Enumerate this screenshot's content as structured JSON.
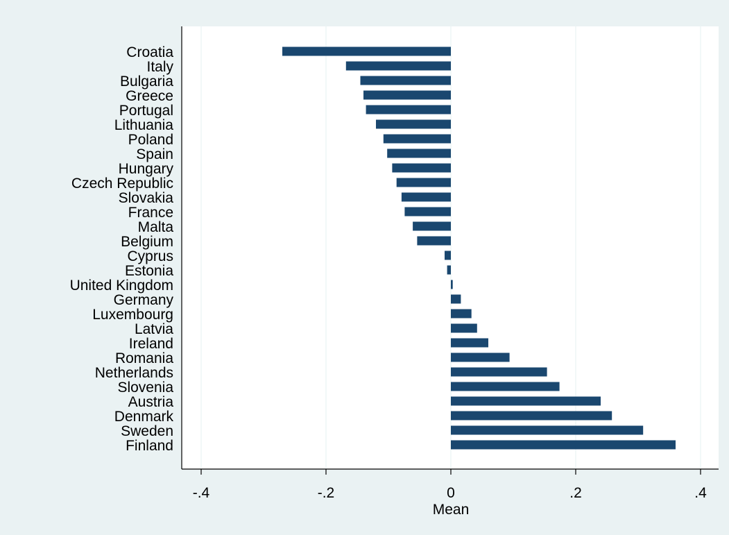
{
  "chart_data": {
    "type": "bar",
    "orientation": "horizontal",
    "categories": [
      "Croatia",
      "Italy",
      "Bulgaria",
      "Greece",
      "Portugal",
      "Lithuania",
      "Poland",
      "Spain",
      "Hungary",
      "Czech Republic",
      "Slovakia",
      "France",
      "Malta",
      "Belgium",
      "Cyprus",
      "Estonia",
      "United Kingdom",
      "Germany",
      "Luxembourg",
      "Latvia",
      "Ireland",
      "Romania",
      "Netherlands",
      "Slovenia",
      "Austria",
      "Denmark",
      "Sweden",
      "Finland"
    ],
    "values": [
      -0.27,
      -0.168,
      -0.145,
      -0.14,
      -0.136,
      -0.12,
      -0.108,
      -0.102,
      -0.094,
      -0.087,
      -0.079,
      -0.074,
      -0.061,
      -0.054,
      -0.01,
      -0.006,
      0.003,
      0.016,
      0.033,
      0.042,
      0.06,
      0.094,
      0.154,
      0.174,
      0.24,
      0.258,
      0.308,
      0.36
    ],
    "xlabel": "Mean",
    "ylabel": "",
    "xlim": [
      -0.4,
      0.4
    ],
    "xticks": [
      -0.4,
      -0.2,
      0,
      0.2,
      0.4
    ],
    "xtick_labels": [
      "-.4",
      "-.2",
      "0",
      ".2",
      ".4"
    ],
    "grid": true,
    "legend": "none",
    "colors": {
      "bar": "#1a476f",
      "outer_background": "#eaf2f3",
      "plot_background": "#ffffff",
      "grid": "#eaf2f3",
      "axis": "#000000"
    }
  }
}
